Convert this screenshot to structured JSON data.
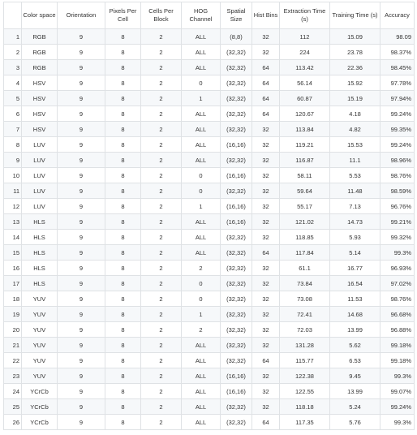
{
  "table": {
    "headers": [
      "",
      "Color space",
      "Orientation",
      "Pixels Per Cell",
      "Cells Per Block",
      "HOG Channel",
      "Spatial Size",
      "Hist Bins",
      "Extraction Time (s)",
      "Training Time (s)",
      "Accuracy"
    ],
    "rows": [
      [
        "1",
        "RGB",
        "9",
        "8",
        "2",
        "ALL",
        "(8,8)",
        "32",
        "112",
        "15.09",
        "98.09"
      ],
      [
        "2",
        "RGB",
        "9",
        "8",
        "2",
        "ALL",
        "(32,32)",
        "32",
        "224",
        "23.78",
        "98.37%"
      ],
      [
        "3",
        "RGB",
        "9",
        "8",
        "2",
        "ALL",
        "(32,32)",
        "64",
        "113.42",
        "22.36",
        "98.45%"
      ],
      [
        "4",
        "HSV",
        "9",
        "8",
        "2",
        "0",
        "(32,32)",
        "64",
        "56.14",
        "15.92",
        "97.78%"
      ],
      [
        "5",
        "HSV",
        "9",
        "8",
        "2",
        "1",
        "(32,32)",
        "64",
        "60.87",
        "15.19",
        "97.94%"
      ],
      [
        "6",
        "HSV",
        "9",
        "8",
        "2",
        "ALL",
        "(32,32)",
        "64",
        "120.67",
        "4.18",
        "99.24%"
      ],
      [
        "7",
        "HSV",
        "9",
        "8",
        "2",
        "ALL",
        "(32,32)",
        "32",
        "113.84",
        "4.82",
        "99.35%"
      ],
      [
        "8",
        "LUV",
        "9",
        "8",
        "2",
        "ALL",
        "(16,16)",
        "32",
        "119.21",
        "15.53",
        "99.24%"
      ],
      [
        "9",
        "LUV",
        "9",
        "8",
        "2",
        "ALL",
        "(32,32)",
        "32",
        "116.87",
        "11.1",
        "98.96%"
      ],
      [
        "10",
        "LUV",
        "9",
        "8",
        "2",
        "0",
        "(16,16)",
        "32",
        "58.11",
        "5.53",
        "98.76%"
      ],
      [
        "11",
        "LUV",
        "9",
        "8",
        "2",
        "0",
        "(32,32)",
        "32",
        "59.64",
        "11.48",
        "98.59%"
      ],
      [
        "12",
        "LUV",
        "9",
        "8",
        "2",
        "1",
        "(16,16)",
        "32",
        "55.17",
        "7.13",
        "96.76%"
      ],
      [
        "13",
        "HLS",
        "9",
        "8",
        "2",
        "ALL",
        "(16,16)",
        "32",
        "121.02",
        "14.73",
        "99.21%"
      ],
      [
        "14",
        "HLS",
        "9",
        "8",
        "2",
        "ALL",
        "(32,32)",
        "32",
        "118.85",
        "5.93",
        "99.32%"
      ],
      [
        "15",
        "HLS",
        "9",
        "8",
        "2",
        "ALL",
        "(32,32)",
        "64",
        "117.84",
        "5.14",
        "99.3%"
      ],
      [
        "16",
        "HLS",
        "9",
        "8",
        "2",
        "2",
        "(32,32)",
        "32",
        "61.1",
        "16.77",
        "96.93%"
      ],
      [
        "17",
        "HLS",
        "9",
        "8",
        "2",
        "0",
        "(32,32)",
        "32",
        "73.84",
        "16.54",
        "97.02%"
      ],
      [
        "18",
        "YUV",
        "9",
        "8",
        "2",
        "0",
        "(32,32)",
        "32",
        "73.08",
        "11.53",
        "98.76%"
      ],
      [
        "19",
        "YUV",
        "9",
        "8",
        "2",
        "1",
        "(32,32)",
        "32",
        "72.41",
        "14.68",
        "96.68%"
      ],
      [
        "20",
        "YUV",
        "9",
        "8",
        "2",
        "2",
        "(32,32)",
        "32",
        "72.03",
        "13.99",
        "96.88%"
      ],
      [
        "21",
        "YUV",
        "9",
        "8",
        "2",
        "ALL",
        "(32,32)",
        "32",
        "131.28",
        "5.62",
        "99.18%"
      ],
      [
        "22",
        "YUV",
        "9",
        "8",
        "2",
        "ALL",
        "(32,32)",
        "64",
        "115.77",
        "6.53",
        "99.18%"
      ],
      [
        "23",
        "YUV",
        "9",
        "8",
        "2",
        "ALL",
        "(16,16)",
        "32",
        "122.38",
        "9.45",
        "99.3%"
      ],
      [
        "24",
        "YCrCb",
        "9",
        "8",
        "2",
        "ALL",
        "(16,16)",
        "32",
        "122.55",
        "13.99",
        "99.07%"
      ],
      [
        "25",
        "YCrCb",
        "9",
        "8",
        "2",
        "ALL",
        "(32,32)",
        "32",
        "118.18",
        "5.24",
        "99.24%"
      ],
      [
        "26",
        "YCrCb",
        "9",
        "8",
        "2",
        "ALL",
        "(32,32)",
        "64",
        "117.35",
        "5.76",
        "99.3%"
      ]
    ]
  }
}
